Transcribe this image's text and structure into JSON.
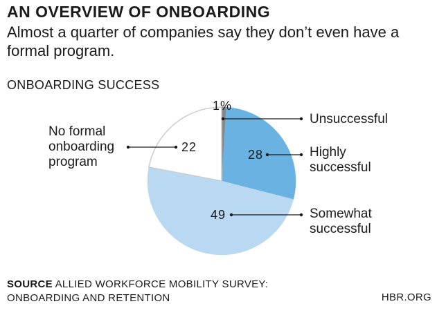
{
  "header": {
    "title": "AN OVERVIEW OF ONBOARDING",
    "subtitle": "Almost a quarter of companies say they don’t even have a formal program.",
    "section_label": "ONBOARDING SUCCESS"
  },
  "chart_data": {
    "type": "pie",
    "start": "12 o'clock",
    "direction": "clockwise",
    "slices": [
      {
        "label": "Unsuccessful",
        "value": 1,
        "value_label": "1%",
        "color": "#888888"
      },
      {
        "label": "Highly successful",
        "value": 28,
        "value_label": "28",
        "color": "#6ab2e2"
      },
      {
        "label": "Somewhat successful",
        "value": 49,
        "value_label": "49",
        "color": "#b9d8f1"
      },
      {
        "label": "No formal onboarding program",
        "value": 22,
        "value_label": "22",
        "color": "#ffffff",
        "outline": "#cccccc"
      }
    ]
  },
  "footer": {
    "source_label": "SOURCE",
    "source_text": "ALLIED WORKFORCE MOBILITY SURVEY:",
    "source_text_2": "ONBOARDING AND RETENTION",
    "brand": "HBR.ORG"
  }
}
